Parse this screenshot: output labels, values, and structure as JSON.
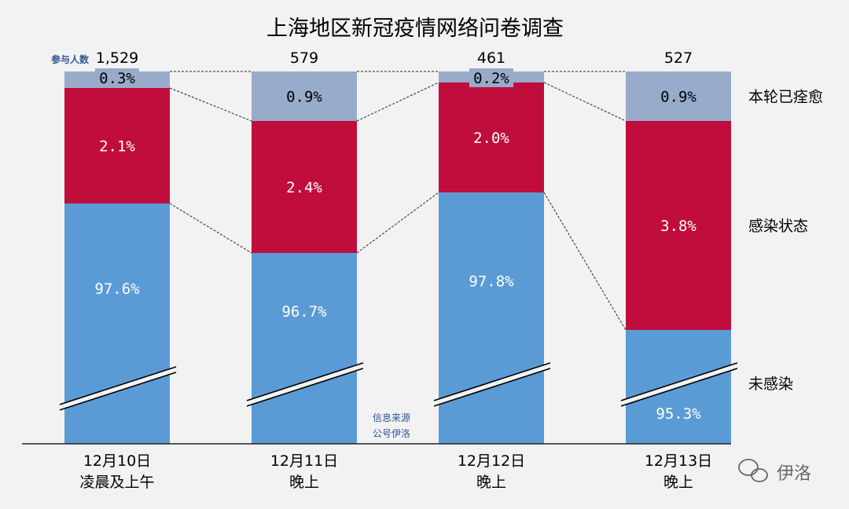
{
  "chart_data": {
    "type": "bar",
    "title": "上海地区新冠疫情网络问卷调查",
    "participants_label": "参与人数",
    "categories": [
      [
        "12月10日",
        "凌晨及上午"
      ],
      [
        "12月11日",
        "晚上"
      ],
      [
        "12月12日",
        "晚上"
      ],
      [
        "12月13日",
        "晚上"
      ]
    ],
    "participants": [
      "1,529",
      "579",
      "461",
      "527"
    ],
    "series": [
      {
        "name": "未感染",
        "values": [
          97.6,
          96.7,
          97.8,
          95.3
        ],
        "labels": [
          "97.6%",
          "96.7%",
          "97.8%",
          "95.3%"
        ],
        "color": "#5b9bd5"
      },
      {
        "name": "感染状态",
        "values": [
          2.1,
          2.4,
          2.0,
          3.8
        ],
        "labels": [
          "2.1%",
          "2.4%",
          "2.0%",
          "3.8%"
        ],
        "color": "#c00d3c"
      },
      {
        "name": "本轮已痊愈",
        "values": [
          0.3,
          0.9,
          0.2,
          0.9
        ],
        "labels": [
          "0.3%",
          "0.9%",
          "0.2%",
          "0.9%"
        ],
        "color": "#98abcb"
      }
    ],
    "axis_break": true,
    "source_note": [
      "信息来源",
      "公号伊洛"
    ],
    "watermark": "伊洛",
    "legend_placement": "right"
  }
}
